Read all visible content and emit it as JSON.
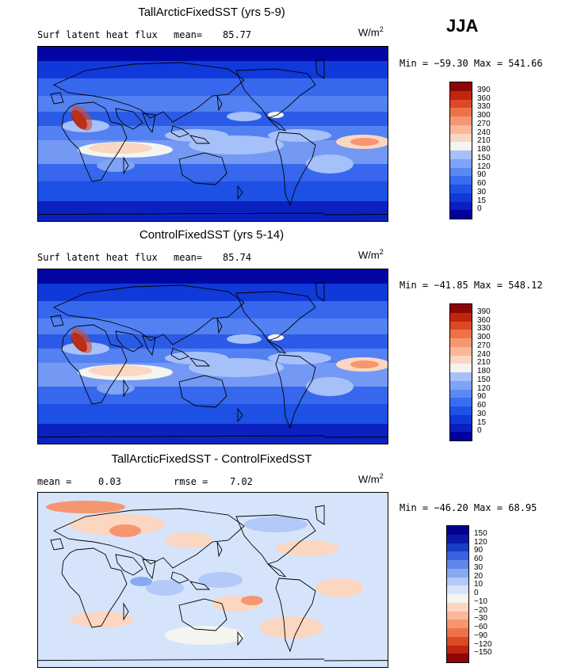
{
  "season": "JJA",
  "panels": [
    {
      "title": "TallArcticFixedSST (yrs 5-9)",
      "field_label": "Surf latent heat flux",
      "stat1_label": "mean=",
      "stat1_value": "85.77",
      "stat2_label": "",
      "stat2_value": "",
      "units_base": "W/m",
      "units_exp": "2",
      "minmax": "Min = −59.30 Max = 541.66",
      "field_type": "absolute"
    },
    {
      "title": "ControlFixedSST (yrs 5-14)",
      "field_label": "Surf latent heat flux",
      "stat1_label": "mean=",
      "stat1_value": "85.74",
      "stat2_label": "",
      "stat2_value": "",
      "units_base": "W/m",
      "units_exp": "2",
      "minmax": "Min = −41.85 Max = 548.12",
      "field_type": "absolute"
    },
    {
      "title": "TallArcticFixedSST - ControlFixedSST",
      "field_label": "mean =",
      "stat1_label": "",
      "stat1_value": "0.03",
      "stat2_label": "rmse =",
      "stat2_value": "7.02",
      "units_base": "W/m",
      "units_exp": "2",
      "minmax": "Min = −46.20 Max = 68.95",
      "field_type": "difference"
    }
  ],
  "chart_data": [
    {
      "type": "heatmap",
      "title": "TallArcticFixedSST (yrs 5-9)",
      "variable": "Surf latent heat flux",
      "units": "W/m2",
      "mean": 85.77,
      "min": -59.3,
      "max": 541.66,
      "colorbar_levels": [
        "0",
        "15",
        "30",
        "60",
        "90",
        "120",
        "150",
        "180",
        "210",
        "240",
        "270",
        "300",
        "330",
        "360",
        "390"
      ],
      "colorbar_colors": [
        "#00009c",
        "#0a1fbf",
        "#0f39d9",
        "#1e52e6",
        "#3a6cf0",
        "#5a88f5",
        "#7ea3f7",
        "#a6c0fa",
        "#f4f4f0",
        "#fbd6c0",
        "#f9b899",
        "#f59670",
        "#ee7248",
        "#db4a25",
        "#c02510",
        "#8c0606"
      ]
    },
    {
      "type": "heatmap",
      "title": "ControlFixedSST (yrs 5-14)",
      "variable": "Surf latent heat flux",
      "units": "W/m2",
      "mean": 85.74,
      "min": -41.85,
      "max": 548.12,
      "colorbar_levels": [
        "0",
        "15",
        "30",
        "60",
        "90",
        "120",
        "150",
        "180",
        "210",
        "240",
        "270",
        "300",
        "330",
        "360",
        "390"
      ],
      "colorbar_colors": [
        "#00009c",
        "#0a1fbf",
        "#0f39d9",
        "#1e52e6",
        "#3a6cf0",
        "#5a88f5",
        "#7ea3f7",
        "#a6c0fa",
        "#f4f4f0",
        "#fbd6c0",
        "#f9b899",
        "#f59670",
        "#ee7248",
        "#db4a25",
        "#c02510",
        "#8c0606"
      ]
    },
    {
      "type": "heatmap",
      "title": "TallArcticFixedSST - ControlFixedSST",
      "variable": "difference",
      "units": "W/m2",
      "mean": 0.03,
      "rmse": 7.02,
      "min": -46.2,
      "max": 68.95,
      "colorbar_levels": [
        "150",
        "120",
        "90",
        "60",
        "30",
        "20",
        "10",
        "0",
        "−10",
        "−20",
        "−30",
        "−60",
        "−90",
        "−120",
        "−150"
      ],
      "colorbar_colors": [
        "#8c0606",
        "#c02510",
        "#db4a25",
        "#ee7248",
        "#f59670",
        "#f9b899",
        "#fbd6c0",
        "#f4f4f0",
        "#d6e4fb",
        "#b3c9f7",
        "#8aa9f2",
        "#5f86ec",
        "#3a62e0",
        "#1a3cc8",
        "#0a1aa8",
        "#00008c"
      ]
    }
  ]
}
